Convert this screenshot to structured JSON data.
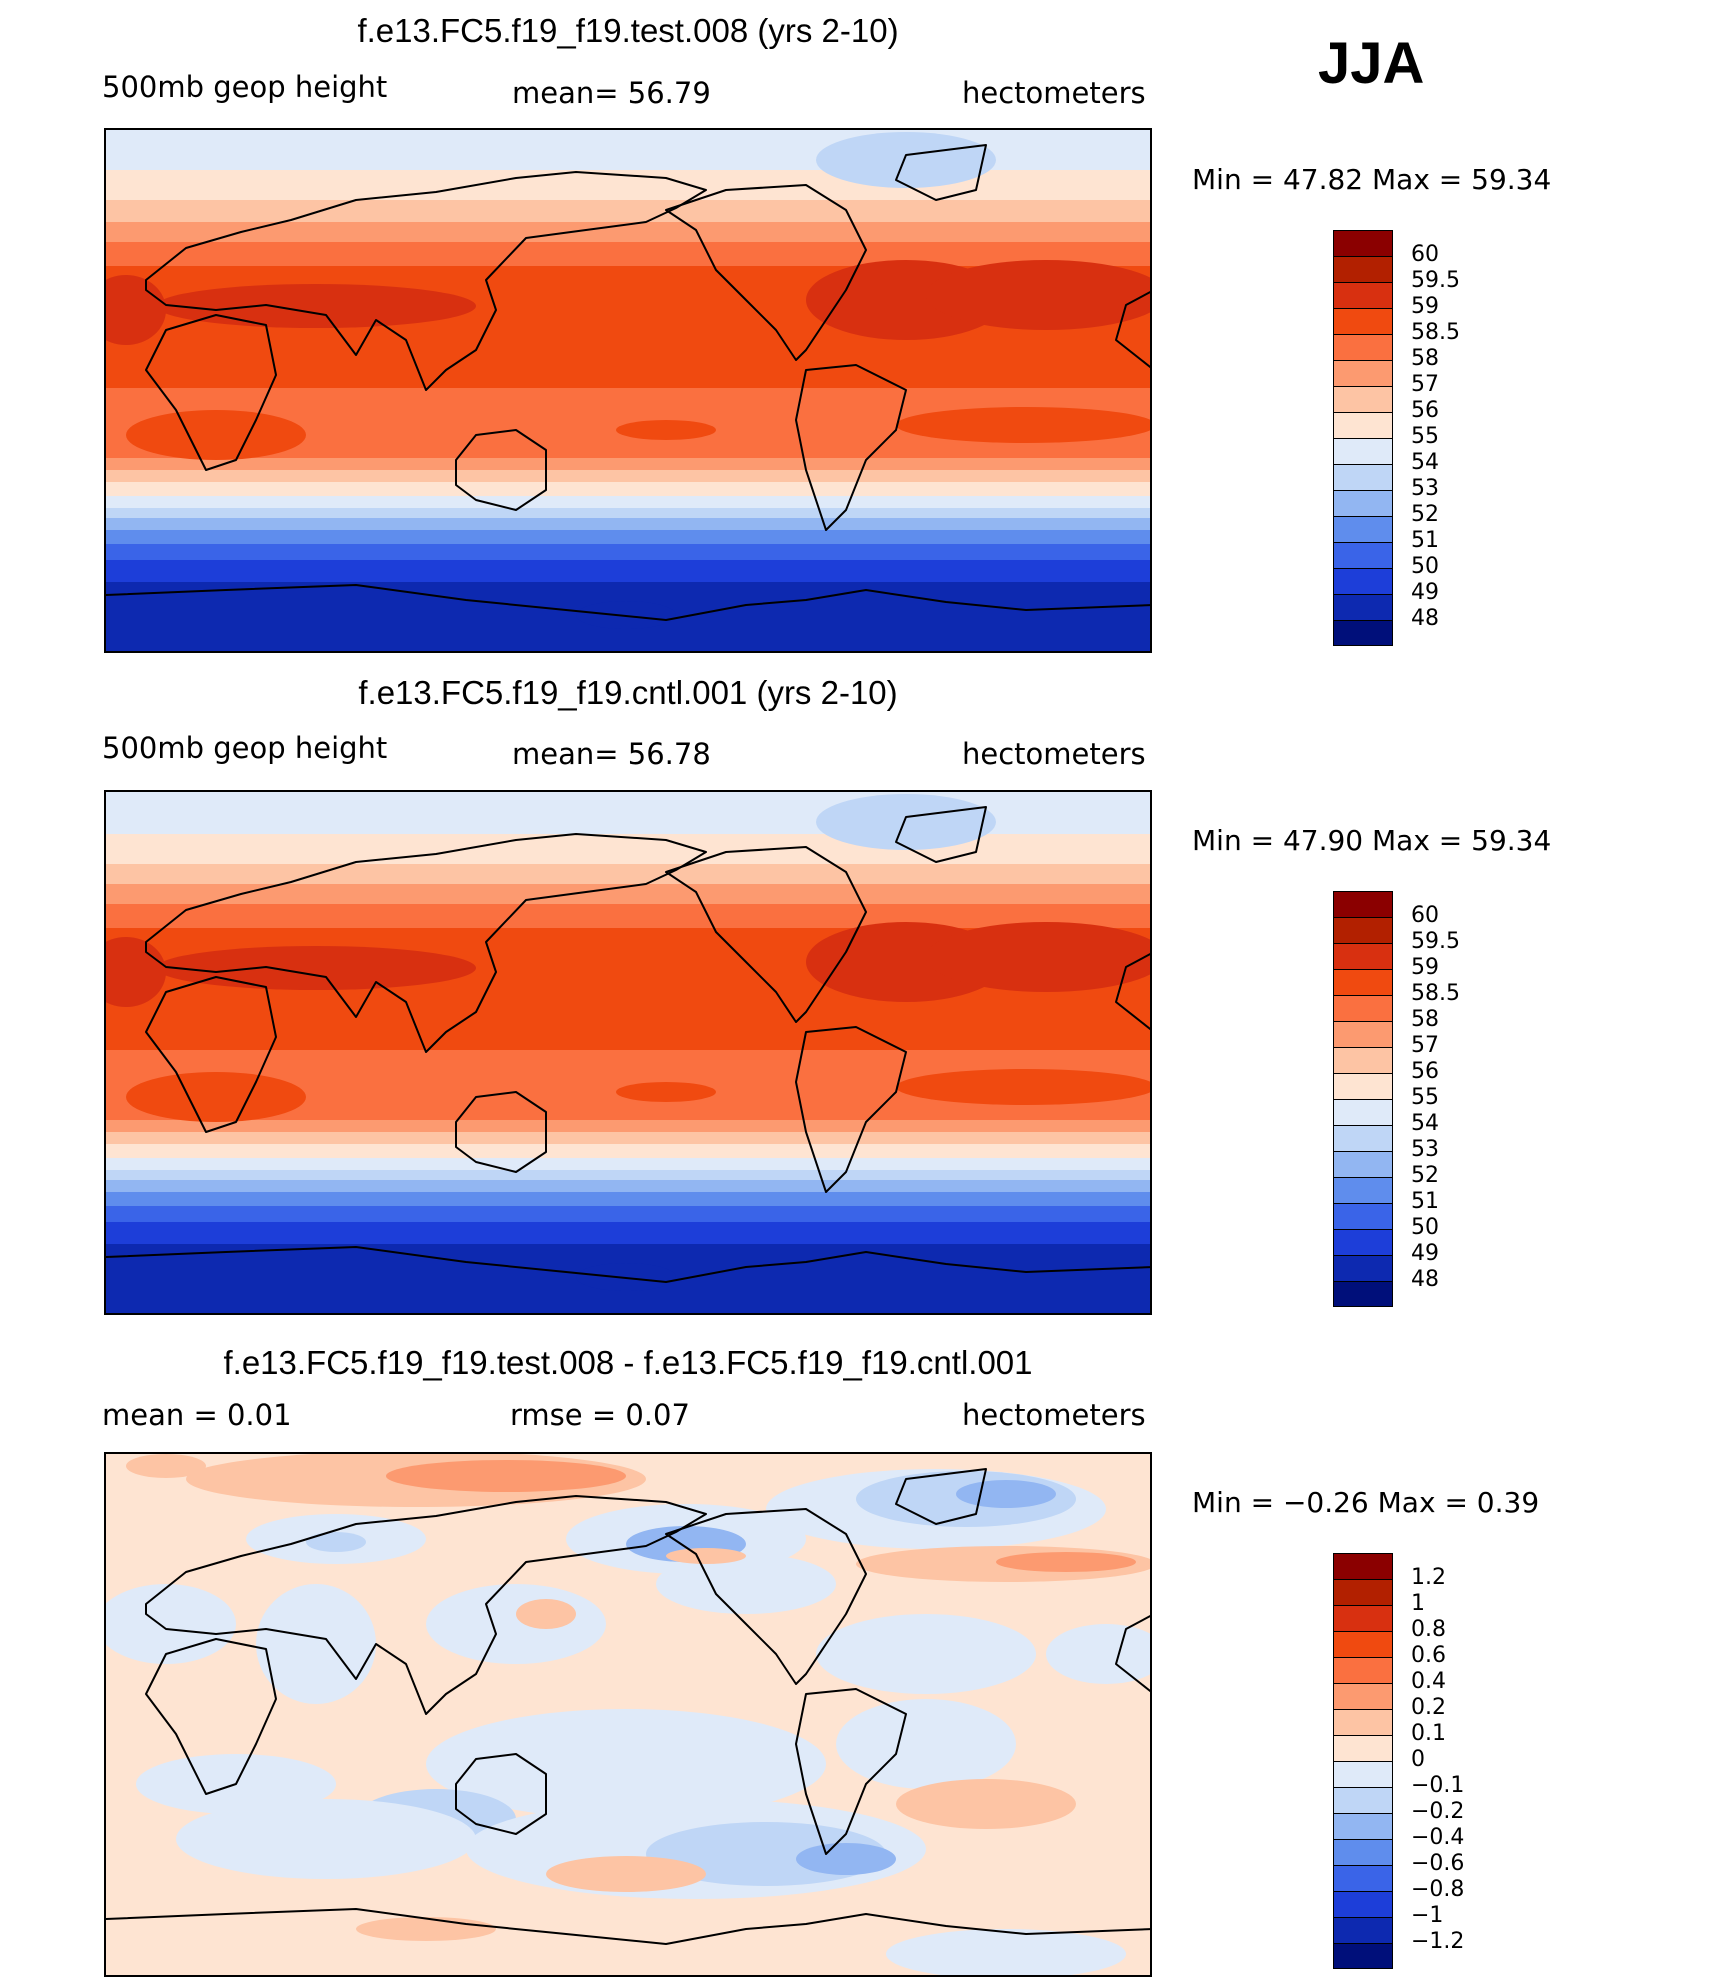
{
  "season": "JJA",
  "panels": [
    {
      "title": "f.e13.FC5.f19_f19.test.008 (yrs 2-10)",
      "left_label": "500mb geop height",
      "mid_label": "mean=   56.79",
      "units": "hectometers",
      "min_max": "Min =   47.82  Max =   59.34"
    },
    {
      "title": "f.e13.FC5.f19_f19.cntl.001 (yrs 2-10)",
      "left_label": "500mb geop height",
      "mid_label": "mean=   56.78",
      "units": "hectometers",
      "min_max": "Min =   47.90  Max =   59.34"
    },
    {
      "title": "f.e13.FC5.f19_f19.test.008 - f.e13.FC5.f19_f19.cntl.001",
      "left_label": "mean =     0.01",
      "mid_label": "rmse =     0.07",
      "units": "hectometers",
      "min_max": "Min =   −0.26  Max =     0.39"
    }
  ],
  "colorbars": [
    {
      "labels": [
        "60",
        "59.5",
        "59",
        "58.5",
        "58",
        "57",
        "56",
        "55",
        "54",
        "53",
        "52",
        "51",
        "50",
        "49",
        "48"
      ],
      "colors": [
        "#8b0000",
        "#b22000",
        "#d83010",
        "#f04a10",
        "#fa7040",
        "#fc9a70",
        "#fdc4a4",
        "#fee4d2",
        "#dfeaf9",
        "#bfd6f6",
        "#92b6f2",
        "#5f8ded",
        "#3a64e8",
        "#1d3ed9",
        "#0d29b0",
        "#000f7a"
      ]
    },
    {
      "labels": [
        "60",
        "59.5",
        "59",
        "58.5",
        "58",
        "57",
        "56",
        "55",
        "54",
        "53",
        "52",
        "51",
        "50",
        "49",
        "48"
      ],
      "colors": [
        "#8b0000",
        "#b22000",
        "#d83010",
        "#f04a10",
        "#fa7040",
        "#fc9a70",
        "#fdc4a4",
        "#fee4d2",
        "#dfeaf9",
        "#bfd6f6",
        "#92b6f2",
        "#5f8ded",
        "#3a64e8",
        "#1d3ed9",
        "#0d29b0",
        "#000f7a"
      ]
    },
    {
      "labels": [
        "1.2",
        "1",
        "0.8",
        "0.6",
        "0.4",
        "0.2",
        "0.1",
        "0",
        "−0.1",
        "−0.2",
        "−0.4",
        "−0.6",
        "−0.8",
        "−1",
        "−1.2"
      ],
      "colors": [
        "#8b0000",
        "#b22000",
        "#d83010",
        "#f04a10",
        "#fa7040",
        "#fc9a70",
        "#fdc4a4",
        "#fee4d2",
        "#dfeaf9",
        "#bfd6f6",
        "#92b6f2",
        "#5f8ded",
        "#3a64e8",
        "#1d3ed9",
        "#0d29b0",
        "#000f7a"
      ]
    }
  ],
  "chart_data": [
    {
      "type": "heatmap",
      "title": "f.e13.FC5.f19_f19.test.008 (yrs 2-10)",
      "variable": "500mb geop height",
      "units": "hectometers",
      "mean": 56.79,
      "min": 47.82,
      "max": 59.34,
      "contour_levels": [
        48,
        49,
        50,
        51,
        52,
        53,
        54,
        55,
        56,
        57,
        58,
        58.5,
        59,
        59.5,
        60
      ]
    },
    {
      "type": "heatmap",
      "title": "f.e13.FC5.f19_f19.cntl.001 (yrs 2-10)",
      "variable": "500mb geop height",
      "units": "hectometers",
      "mean": 56.78,
      "min": 47.9,
      "max": 59.34,
      "contour_levels": [
        48,
        49,
        50,
        51,
        52,
        53,
        54,
        55,
        56,
        57,
        58,
        58.5,
        59,
        59.5,
        60
      ]
    },
    {
      "type": "heatmap",
      "title": "f.e13.FC5.f19_f19.test.008 - f.e13.FC5.f19_f19.cntl.001",
      "variable": "difference",
      "units": "hectometers",
      "mean": 0.01,
      "rmse": 0.07,
      "min": -0.26,
      "max": 0.39,
      "contour_levels": [
        -1.2,
        -1,
        -0.8,
        -0.6,
        -0.4,
        -0.2,
        -0.1,
        0,
        0.1,
        0.2,
        0.4,
        0.6,
        0.8,
        1,
        1.2
      ]
    }
  ]
}
